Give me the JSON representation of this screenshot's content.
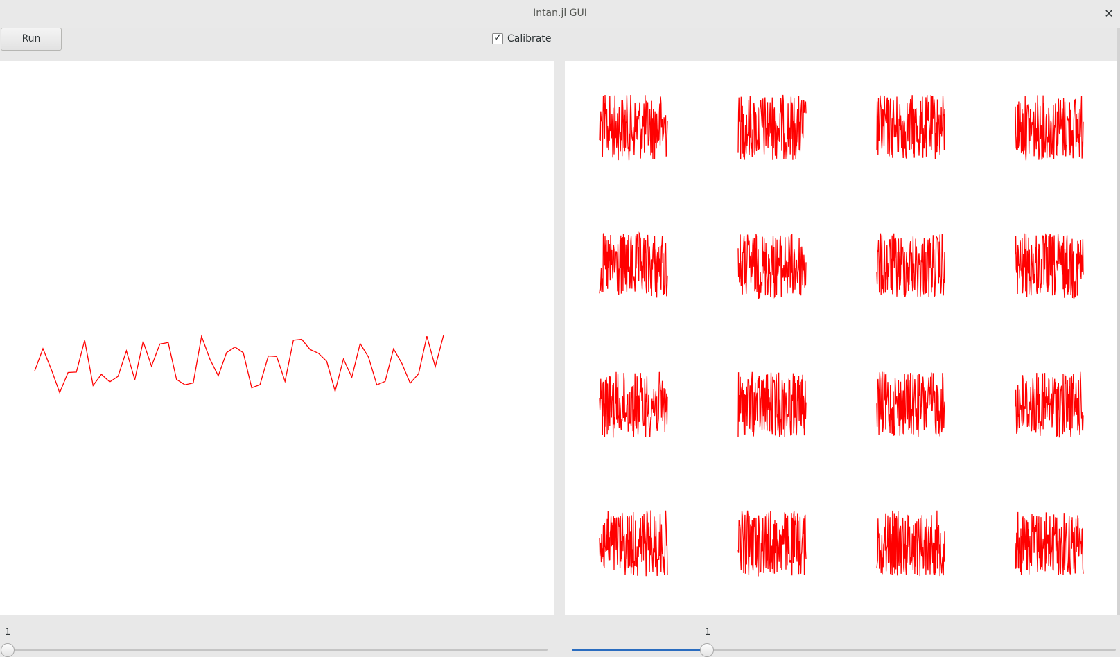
{
  "window": {
    "title": "Intan.jl GUI"
  },
  "toolbar": {
    "run_label": "Run",
    "calibrate_label": "Calibrate",
    "calibrate_checked": true
  },
  "slider_left": {
    "value": "1",
    "position": 0.0
  },
  "slider_right": {
    "value": "1",
    "position": 1.0
  },
  "colors": {
    "trace": "#ff0000",
    "accent": "#2a6cbf"
  }
}
